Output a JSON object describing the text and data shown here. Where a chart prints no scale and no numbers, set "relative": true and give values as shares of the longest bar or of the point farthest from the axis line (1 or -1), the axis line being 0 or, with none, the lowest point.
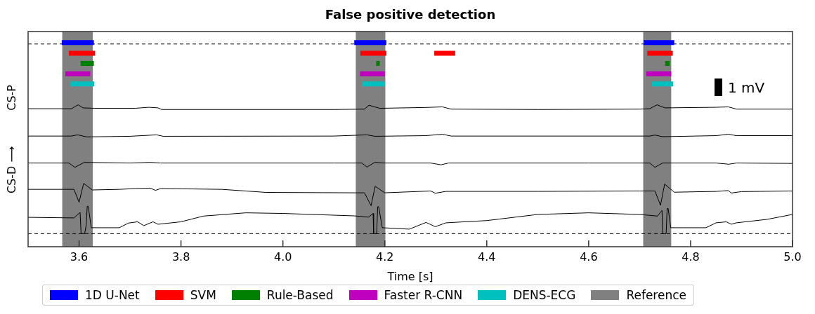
{
  "chart_data": {
    "type": "line",
    "title": "False positive detection",
    "xlabel": "Time [s]",
    "ylabel": "CS-D ⟶          CS-P",
    "relative": true,
    "tick_labels": "x",
    "grid": false,
    "legend": "bottom",
    "xlim": [
      3.5,
      5.0
    ],
    "xticks": [
      3.6,
      3.8,
      {
        "value": 4,
        "label": "4.0"
      },
      4.2,
      4.4,
      4.6,
      4.8,
      {
        "value": 5,
        "label": "5.0"
      }
    ],
    "annotations": [
      "1 mV"
    ],
    "bands": [
      {
        "axis": "x",
        "from": 3.567,
        "to": 3.627,
        "label": "Reference",
        "color": "#808080"
      },
      {
        "axis": "x",
        "from": 4.143,
        "to": 4.201,
        "color": "#808080"
      },
      {
        "axis": "x",
        "from": 4.707,
        "to": 4.762,
        "color": "#808080"
      }
    ],
    "ref_lines": [
      {
        "axis": "y",
        "value": 0.993,
        "color": "#000000",
        "line_style": "dashed"
      },
      {
        "axis": "y",
        "value": 0.064,
        "color": "#000000",
        "line_style": "dashed"
      }
    ],
    "series": [
      {
        "name": "1D U-Net",
        "color": "#0000ff",
        "x": [
          3.566,
          3.629,
          3.63,
          4.14,
          4.203,
          4.204,
          4.708,
          4.768
        ],
        "values": [
          1,
          1,
          null,
          1,
          1,
          null,
          1,
          1
        ]
      },
      {
        "name": "SVM",
        "color": "#ff0000",
        "x": [
          3.58,
          3.631,
          3.632,
          4.152,
          4.203,
          4.204,
          4.297,
          4.338,
          4.339,
          4.715,
          4.765
        ],
        "values": [
          0.948,
          0.948,
          null,
          0.948,
          0.948,
          null,
          0.948,
          0.948,
          null,
          0.948,
          0.948
        ]
      },
      {
        "name": "Rule-Based",
        "color": "#008000",
        "x": [
          3.603,
          3.629,
          3.63,
          4.183,
          4.19,
          4.191,
          4.75,
          4.759
        ],
        "values": [
          0.898,
          0.898,
          null,
          0.898,
          0.898,
          null,
          0.898,
          0.898
        ]
      },
      {
        "name": "Faster R-CNN",
        "color": "#bf00bf",
        "x": [
          3.573,
          3.622,
          3.623,
          4.151,
          4.2,
          4.201,
          4.713,
          4.762
        ],
        "values": [
          0.847,
          0.847,
          null,
          0.847,
          0.847,
          null,
          0.847,
          0.847
        ]
      },
      {
        "name": "DENS-ECG",
        "color": "#00bfbf",
        "x": [
          3.583,
          3.63,
          3.631,
          4.155,
          4.2,
          4.201,
          4.724,
          4.766
        ],
        "values": [
          0.797,
          0.797,
          null,
          0.797,
          0.797,
          null,
          0.797,
          0.797
        ]
      },
      {
        "color": "#000000",
        "x": [
          3.5,
          3.585,
          3.598,
          3.608,
          3.63,
          3.71,
          3.737,
          3.755,
          3.762,
          3.9,
          4.1,
          4.16,
          4.169,
          4.19,
          4.28,
          4.313,
          4.33,
          4.5,
          4.7,
          4.72,
          4.734,
          4.75,
          4.85,
          4.874,
          4.89,
          5.0
        ],
        "values": [
          0.676,
          0.676,
          0.695,
          0.68,
          0.678,
          0.678,
          0.683,
          0.68,
          0.672,
          0.672,
          0.672,
          0.674,
          0.693,
          0.678,
          0.682,
          0.685,
          0.674,
          0.672,
          0.674,
          0.676,
          0.695,
          0.68,
          0.683,
          0.685,
          0.674,
          0.674
        ]
      },
      {
        "color": "#000000",
        "x": [
          3.5,
          3.585,
          3.597,
          3.615,
          3.7,
          3.752,
          3.765,
          4.1,
          4.165,
          4.18,
          4.28,
          4.313,
          4.33,
          4.6,
          4.72,
          4.73,
          4.745,
          4.85,
          4.874,
          4.89,
          5.0
        ],
        "values": [
          0.542,
          0.542,
          0.548,
          0.538,
          0.541,
          0.548,
          0.541,
          0.542,
          0.548,
          0.541,
          0.544,
          0.551,
          0.542,
          0.542,
          0.542,
          0.547,
          0.539,
          0.544,
          0.551,
          0.544,
          0.544
        ]
      },
      {
        "color": "#000000",
        "x": [
          3.5,
          3.58,
          3.592,
          3.61,
          3.7,
          3.74,
          3.76,
          4.1,
          4.155,
          4.165,
          4.18,
          4.2,
          4.29,
          4.31,
          4.325,
          4.6,
          4.72,
          4.73,
          4.745,
          4.85,
          4.875,
          4.89,
          5.0
        ],
        "values": [
          0.41,
          0.41,
          0.389,
          0.413,
          0.41,
          0.413,
          0.41,
          0.41,
          0.41,
          0.39,
          0.413,
          0.41,
          0.41,
          0.401,
          0.41,
          0.41,
          0.41,
          0.389,
          0.41,
          0.41,
          0.404,
          0.41,
          0.408
        ]
      },
      {
        "color": "#000000",
        "x": [
          3.5,
          3.59,
          3.6,
          3.609,
          3.626,
          3.68,
          3.71,
          3.74,
          3.75,
          3.76,
          3.88,
          3.967,
          4.14,
          4.16,
          4.173,
          4.181,
          4.2,
          4.29,
          4.299,
          4.32,
          4.5,
          4.7,
          4.73,
          4.741,
          4.749,
          4.768,
          4.85,
          4.874,
          4.88,
          4.9,
          5.0
        ],
        "values": [
          0.281,
          0.281,
          0.218,
          0.31,
          0.278,
          0.281,
          0.285,
          0.287,
          0.276,
          0.285,
          0.281,
          0.266,
          0.264,
          0.264,
          0.201,
          0.296,
          0.264,
          0.273,
          0.262,
          0.271,
          0.271,
          0.273,
          0.273,
          0.203,
          0.307,
          0.267,
          0.271,
          0.275,
          0.263,
          0.27,
          0.273
        ]
      },
      {
        "color": "#000000",
        "x": [
          3.5,
          3.59,
          3.602,
          3.604,
          3.611,
          3.614,
          3.616,
          3.618,
          3.624,
          3.679,
          3.697,
          3.715,
          3.727,
          3.745,
          3.755,
          3.8,
          3.844,
          3.927,
          4.0,
          4.14,
          4.168,
          4.177,
          4.178,
          4.184,
          4.186,
          4.188,
          4.195,
          4.248,
          4.281,
          4.299,
          4.32,
          4.4,
          4.5,
          4.6,
          4.7,
          4.735,
          4.744,
          4.745,
          4.752,
          4.754,
          4.756,
          4.761,
          4.83,
          4.85,
          4.87,
          4.88,
          4.89,
          4.95,
          5.0
        ],
        "values": [
          0.144,
          0.141,
          0.168,
          0.064,
          0.064,
          0.105,
          0.198,
          0.198,
          0.093,
          0.093,
          0.116,
          0.122,
          0.103,
          0.122,
          0.11,
          0.122,
          0.15,
          0.166,
          0.163,
          0.151,
          0.145,
          0.163,
          0.064,
          0.064,
          0.196,
          0.196,
          0.093,
          0.086,
          0.119,
          0.098,
          0.117,
          0.128,
          0.158,
          0.166,
          0.158,
          0.15,
          0.178,
          0.064,
          0.064,
          0.187,
          0.187,
          0.093,
          0.093,
          0.117,
          0.122,
          0.11,
          0.117,
          0.134,
          0.158
        ]
      }
    ]
  }
}
